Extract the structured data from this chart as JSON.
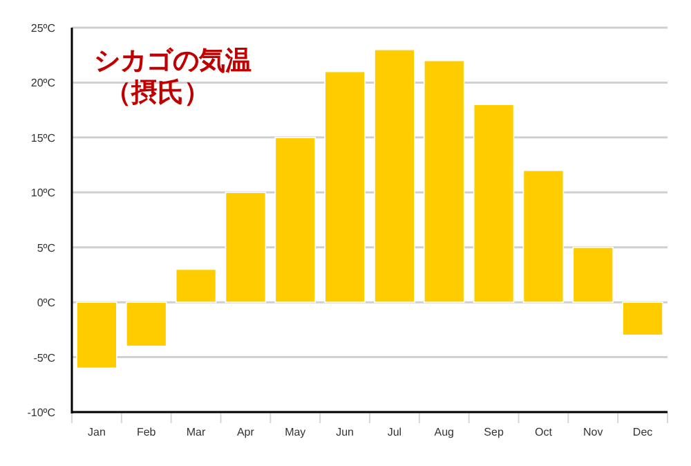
{
  "chart_data": {
    "type": "bar",
    "title": "シカゴの気温",
    "subtitle": "（摂氏）",
    "categories": [
      "Jan",
      "Feb",
      "Mar",
      "Apr",
      "May",
      "Jun",
      "Jul",
      "Aug",
      "Sep",
      "Oct",
      "Nov",
      "Dec"
    ],
    "values": [
      -6,
      -4,
      3,
      10,
      15,
      21,
      23,
      22,
      18,
      12,
      5,
      -3
    ],
    "color": "#ffcc00",
    "ylim": [
      -10,
      25
    ],
    "yticks": [
      {
        "value": -10,
        "label": "-10ºC"
      },
      {
        "value": -5,
        "label": "-5ºC"
      },
      {
        "value": 0,
        "label": "0ºC"
      },
      {
        "value": 5,
        "label": "5ºC"
      },
      {
        "value": 10,
        "label": "10ºC"
      },
      {
        "value": 15,
        "label": "15ºC"
      },
      {
        "value": 20,
        "label": "20ºC"
      },
      {
        "value": 25,
        "label": "25ºC"
      }
    ],
    "grid": "y"
  }
}
